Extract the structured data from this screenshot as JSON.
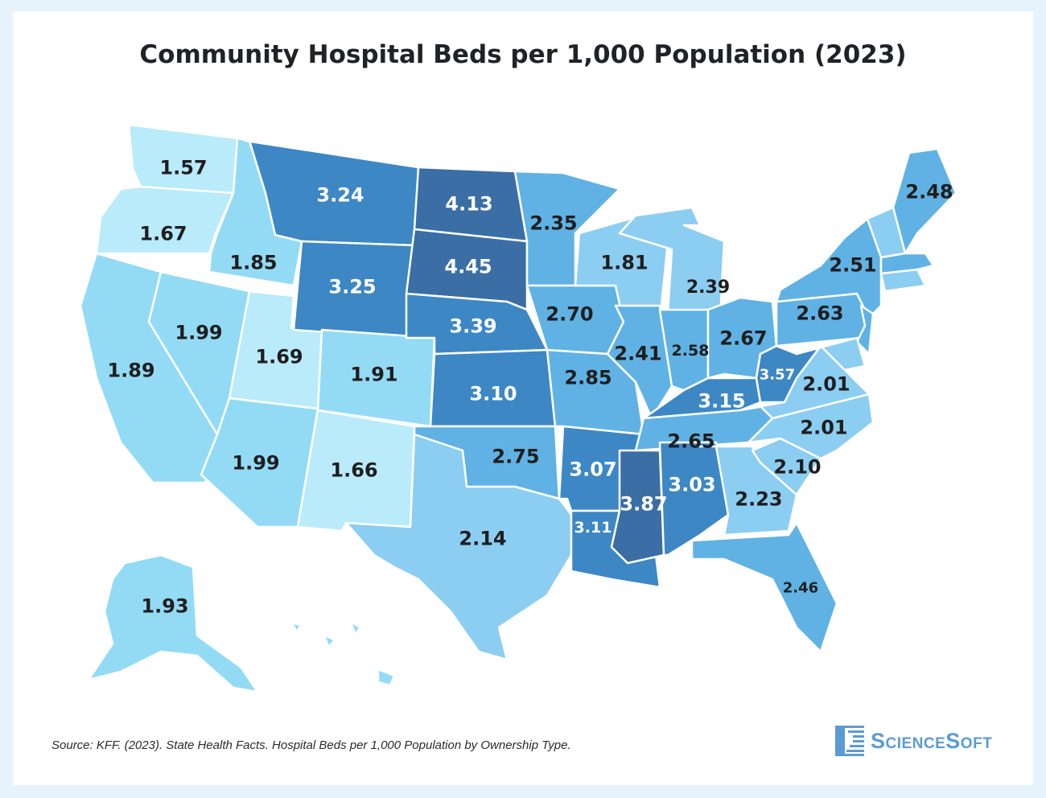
{
  "title": "Community Hospital Beds per 1,000 Population (2023)",
  "source": "Source: KFF. (2023). State Health Facts. Hospital Beds per 1,000 Population by Ownership Type.",
  "logo": "ScienceSoft",
  "palette": {
    "t1": "#b9ebfa",
    "t2": "#93dbf5",
    "t3": "#8ccdf2",
    "t4": "#60b2e4",
    "t5": "#3d87c5",
    "t6": "#3a6ea4"
  },
  "chart_data": {
    "type": "choropleth",
    "title": "Community Hospital Beds per 1,000 Population (2023)",
    "states": [
      {
        "state": "WA",
        "value": "1.57",
        "tier": "t1"
      },
      {
        "state": "OR",
        "value": "1.67",
        "tier": "t1"
      },
      {
        "state": "CA",
        "value": "1.89",
        "tier": "t2"
      },
      {
        "state": "ID",
        "value": "1.85",
        "tier": "t2"
      },
      {
        "state": "NV",
        "value": "1.99",
        "tier": "t2"
      },
      {
        "state": "UT",
        "value": "1.69",
        "tier": "t1"
      },
      {
        "state": "AZ",
        "value": "1.99",
        "tier": "t2"
      },
      {
        "state": "MT",
        "value": "3.24",
        "tier": "t5"
      },
      {
        "state": "WY",
        "value": "3.25",
        "tier": "t5"
      },
      {
        "state": "CO",
        "value": "1.91",
        "tier": "t2"
      },
      {
        "state": "NM",
        "value": "1.66",
        "tier": "t1"
      },
      {
        "state": "ND",
        "value": "4.13",
        "tier": "t6"
      },
      {
        "state": "SD",
        "value": "4.45",
        "tier": "t6"
      },
      {
        "state": "NE",
        "value": "3.39",
        "tier": "t5"
      },
      {
        "state": "KS",
        "value": "3.10",
        "tier": "t5"
      },
      {
        "state": "OK",
        "value": "2.75",
        "tier": "t4"
      },
      {
        "state": "TX",
        "value": "2.14",
        "tier": "t3"
      },
      {
        "state": "MN",
        "value": "2.35",
        "tier": "t4"
      },
      {
        "state": "IA",
        "value": "2.70",
        "tier": "t4"
      },
      {
        "state": "MO",
        "value": "2.85",
        "tier": "t4"
      },
      {
        "state": "AR",
        "value": "3.07",
        "tier": "t5"
      },
      {
        "state": "LA",
        "value": "3.11",
        "tier": "t5"
      },
      {
        "state": "WI",
        "value": "1.81",
        "tier": "t3"
      },
      {
        "state": "IL",
        "value": "2.41",
        "tier": "t4"
      },
      {
        "state": "MI",
        "value": "2.39",
        "tier": "t3"
      },
      {
        "state": "IN",
        "value": "2.58",
        "tier": "t4"
      },
      {
        "state": "OH",
        "value": "2.67",
        "tier": "t4"
      },
      {
        "state": "KY",
        "value": "3.15",
        "tier": "t5"
      },
      {
        "state": "TN",
        "value": "2.65",
        "tier": "t4"
      },
      {
        "state": "MS",
        "value": "3.87",
        "tier": "t6"
      },
      {
        "state": "AL",
        "value": "3.03",
        "tier": "t5"
      },
      {
        "state": "GA",
        "value": "2.23",
        "tier": "t3"
      },
      {
        "state": "FL",
        "value": "2.46",
        "tier": "t4"
      },
      {
        "state": "SC",
        "value": "2.10",
        "tier": "t3"
      },
      {
        "state": "NC",
        "value": "2.01",
        "tier": "t3"
      },
      {
        "state": "VA",
        "value": "2.01",
        "tier": "t3"
      },
      {
        "state": "WV",
        "value": "3.57",
        "tier": "t5"
      },
      {
        "state": "PA",
        "value": "2.63",
        "tier": "t4"
      },
      {
        "state": "NY",
        "value": "2.51",
        "tier": "t4"
      },
      {
        "state": "ME",
        "value": "2.48",
        "tier": "t4"
      },
      {
        "state": "AK",
        "value": "1.93",
        "tier": "t2"
      },
      {
        "state": "NJ",
        "value": "",
        "tier": "t4"
      },
      {
        "state": "MD",
        "value": "",
        "tier": "t3"
      },
      {
        "state": "VTNH",
        "value": "",
        "tier": "t3"
      },
      {
        "state": "NE-SOUTH",
        "value": "",
        "tier": "t3"
      },
      {
        "state": "MA",
        "value": "",
        "tier": "t4"
      },
      {
        "state": "HI",
        "value": "",
        "tier": "t2"
      }
    ]
  }
}
